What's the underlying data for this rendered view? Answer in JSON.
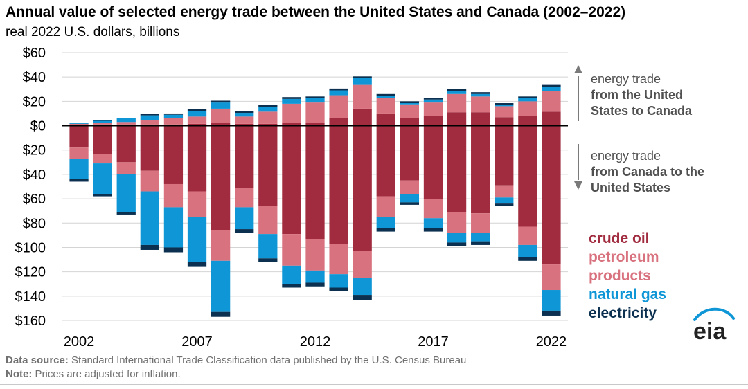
{
  "title": "Annual value of selected energy trade between the United States and Canada (2002–2022)",
  "subtitle": "real 2022 U.S. dollars, billions",
  "annotations": {
    "up_line1": "energy trade",
    "up_line2": "from the United",
    "up_line3": "States to Canada",
    "down_line1": "energy trade",
    "down_line2": "from Canada to the",
    "down_line3": "United States"
  },
  "legend": [
    {
      "label": "crude oil",
      "color": "#a12c3f"
    },
    {
      "label": "petroleum",
      "color": "#d9727f"
    },
    {
      "label": "products",
      "color": "#d9727f"
    },
    {
      "label": "natural gas",
      "color": "#0f96d6"
    },
    {
      "label": "electricity",
      "color": "#0b3050"
    }
  ],
  "footer": {
    "source_label": "Data source:",
    "source_text": " Standard International Trade Classification data published by the U.S. Census Bureau",
    "note_label": "Note:",
    "note_text": " Prices are adjusted for inflation."
  },
  "logo_text": "eia",
  "chart_data": {
    "type": "bar",
    "stacked": true,
    "title": "Annual value of selected energy trade between the United States and Canada (2002–2022)",
    "ylabel": "real 2022 U.S. dollars, billions",
    "x": [
      2002,
      2003,
      2004,
      2005,
      2006,
      2007,
      2008,
      2009,
      2010,
      2011,
      2012,
      2013,
      2014,
      2015,
      2016,
      2017,
      2018,
      2019,
      2020,
      2021,
      2022
    ],
    "xtick_labels": [
      "2002",
      "2007",
      "2012",
      "2017",
      "2022"
    ],
    "ytick_values": [
      60,
      40,
      20,
      0,
      -20,
      -40,
      -60,
      -80,
      -100,
      -120,
      -140,
      -160
    ],
    "ytick_labels": [
      "$60",
      "$40",
      "$20",
      "$0",
      "$20",
      "$40",
      "$60",
      "$80",
      "$100",
      "$120",
      "$140",
      "$160"
    ],
    "ylim": [
      -160,
      60
    ],
    "grid": true,
    "legend_position": "right",
    "colors": {
      "crude": "#a12c3f",
      "products": "#d9727f",
      "gas": "#0f96d6",
      "elec": "#0b3050"
    },
    "series": [
      {
        "name": "crude oil",
        "key": "crude",
        "exports": [
          0.5,
          1,
          1,
          1,
          1,
          1.5,
          2.5,
          1.5,
          1.5,
          2.5,
          2.5,
          6,
          14,
          10,
          6,
          8,
          11,
          11,
          7,
          8,
          11.5
        ],
        "imports": [
          -18,
          -23,
          -30,
          -37,
          -48,
          -54,
          -86,
          -51,
          -66,
          -89,
          -93,
          -97,
          -103,
          -58,
          -45,
          -60,
          -71,
          -72,
          -49,
          -83,
          -114
        ]
      },
      {
        "name": "petroleum products",
        "key": "products",
        "exports": [
          1,
          1.5,
          2,
          3.5,
          5,
          6,
          11.5,
          6,
          10,
          15.5,
          16.5,
          19,
          19.5,
          12.5,
          11.5,
          11,
          15,
          13,
          9,
          12,
          17
        ]
      },
      {
        "name": "natural gas",
        "key": "gas",
        "exports": [
          0.5,
          1.5,
          3,
          4,
          3,
          4.5,
          5,
          3,
          4,
          4,
          3.5,
          4,
          5.5,
          2,
          1,
          2.5,
          2.5,
          2,
          1,
          2.5,
          3.5
        ]
      },
      {
        "name": "electricity",
        "key": "elec",
        "exports": [
          0.5,
          0.5,
          0.5,
          1,
          1,
          1.5,
          1.5,
          1.5,
          1.5,
          1.5,
          1.5,
          1.5,
          1.5,
          1.5,
          1.5,
          1.5,
          1.5,
          1.5,
          1.5,
          1.5,
          1.5
        ]
      }
    ],
    "imports_breakdown": {
      "crude": [
        -18,
        -23,
        -30,
        -37,
        -48,
        -54,
        -86,
        -51,
        -66,
        -89,
        -93,
        -97,
        -103,
        -58,
        -45,
        -60,
        -71,
        -72,
        -49,
        -83,
        -114
      ],
      "products": [
        -9,
        -8,
        -10,
        -17,
        -19,
        -21,
        -25,
        -16,
        -23,
        -26,
        -26,
        -25,
        -22,
        -17,
        -11,
        -16,
        -17,
        -16,
        -10,
        -15,
        -21
      ],
      "gas": [
        -17,
        -25,
        -31,
        -44,
        -33,
        -37,
        -42,
        -18,
        -20,
        -15,
        -10,
        -11,
        -14,
        -9,
        -7,
        -8,
        -8,
        -7,
        -5,
        -10,
        -17
      ],
      "elec": [
        -2,
        -2,
        -2,
        -4,
        -4,
        -4,
        -4,
        -3,
        -3,
        -3,
        -3,
        -3,
        -4,
        -3,
        -2,
        -3,
        -3,
        -3,
        -2,
        -3,
        -4
      ]
    }
  }
}
